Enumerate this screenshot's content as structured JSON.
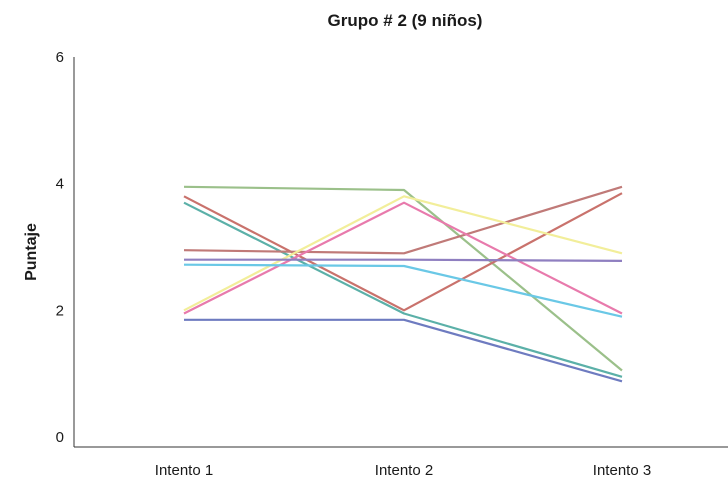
{
  "chart_data": {
    "type": "line",
    "title": "Grupo # 2 (9 niños)",
    "xlabel": "",
    "ylabel": "Puntaje",
    "categories": [
      "Intento 1",
      "Intento 2",
      "Intento 3"
    ],
    "ylim": [
      0,
      6
    ],
    "yticks": [
      0,
      2,
      4,
      6
    ],
    "grid": false,
    "legend": "none",
    "series": [
      {
        "color": "#9bc08a",
        "values": [
          3.95,
          3.9,
          1.05
        ]
      },
      {
        "color": "#5bb0a8",
        "values": [
          3.7,
          1.95,
          0.95
        ]
      },
      {
        "color": "#c9726c",
        "values": [
          3.8,
          2.0,
          3.85
        ]
      },
      {
        "color": "#c07a78",
        "values": [
          2.95,
          2.9,
          3.95
        ]
      },
      {
        "color": "#f2ee9a",
        "values": [
          2.0,
          3.8,
          2.9
        ]
      },
      {
        "color": "#e87aac",
        "values": [
          1.95,
          3.7,
          1.95
        ]
      },
      {
        "color": "#8f7fc0",
        "values": [
          2.8,
          2.8,
          2.78
        ]
      },
      {
        "color": "#6ac8e6",
        "values": [
          2.72,
          2.7,
          1.9
        ]
      },
      {
        "color": "#6e7bc0",
        "values": [
          1.85,
          1.85,
          0.88
        ]
      }
    ]
  }
}
